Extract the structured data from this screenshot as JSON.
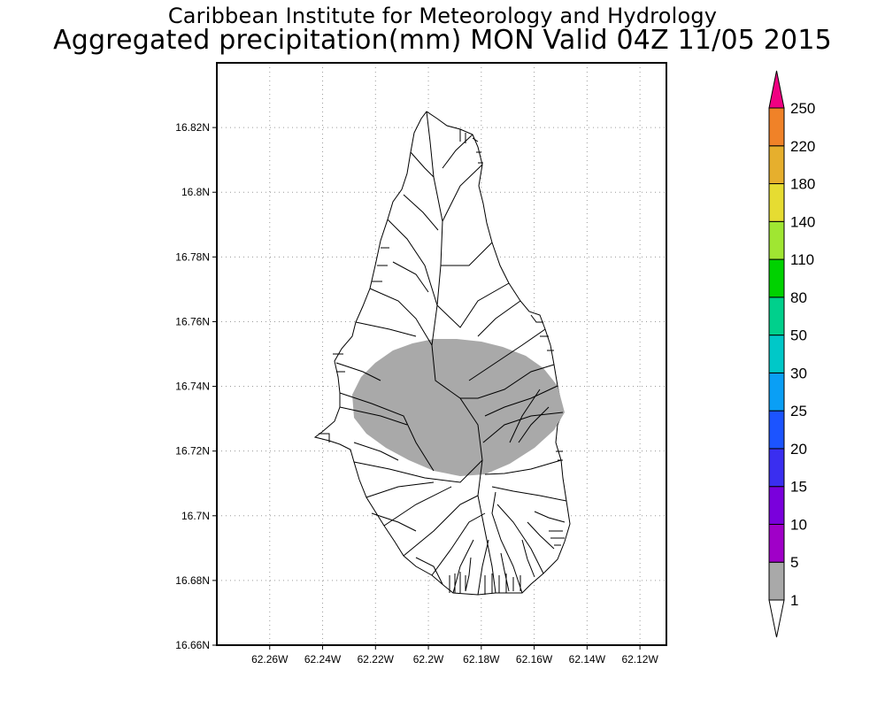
{
  "header": {
    "line1": "Caribbean Institute for Meteorology and Hydrology",
    "line2": "Aggregated precipitation(mm) MON Valid 04Z 11/05 2015"
  },
  "map": {
    "lon_range": [
      -62.28,
      -62.11
    ],
    "lat_range": [
      16.66,
      16.84
    ],
    "x_ticks": [
      {
        "value": -62.26,
        "label": "62.26W"
      },
      {
        "value": -62.24,
        "label": "62.24W"
      },
      {
        "value": -62.22,
        "label": "62.22W"
      },
      {
        "value": -62.2,
        "label": "62.2W"
      },
      {
        "value": -62.18,
        "label": "62.18W"
      },
      {
        "value": -62.16,
        "label": "62.16W"
      },
      {
        "value": -62.14,
        "label": "62.14W"
      },
      {
        "value": -62.12,
        "label": "62.12W"
      }
    ],
    "y_ticks": [
      {
        "value": 16.66,
        "label": "16.66N"
      },
      {
        "value": 16.68,
        "label": "16.68N"
      },
      {
        "value": 16.7,
        "label": "16.7N"
      },
      {
        "value": 16.72,
        "label": "16.72N"
      },
      {
        "value": 16.74,
        "label": "16.74N"
      },
      {
        "value": 16.76,
        "label": "16.76N"
      },
      {
        "value": 16.78,
        "label": "16.78N"
      },
      {
        "value": 16.8,
        "label": "16.8N"
      },
      {
        "value": 16.82,
        "label": "16.82N"
      }
    ],
    "grid": true,
    "precip_area_color": "#a9a9a9"
  },
  "colorbar": {
    "levels": [
      "1",
      "5",
      "10",
      "15",
      "20",
      "25",
      "30",
      "50",
      "80",
      "110",
      "140",
      "180",
      "220",
      "250"
    ],
    "colors": [
      "#a9a9a9",
      "#a000c8",
      "#7a00dc",
      "#3a2ef0",
      "#1c54ff",
      "#0a9ff5",
      "#00c8c8",
      "#00d08c",
      "#00d200",
      "#a0e632",
      "#e6dc32",
      "#e6af2d",
      "#f08228",
      "#fa3c3c",
      "#f00082"
    ]
  }
}
